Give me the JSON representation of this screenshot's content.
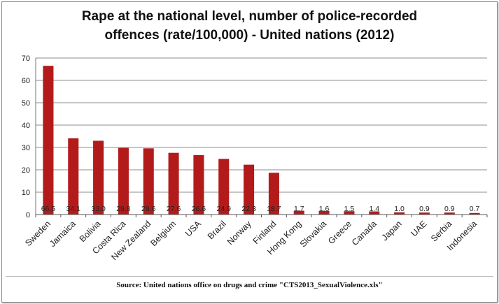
{
  "chart_data": {
    "type": "bar",
    "title_lines": [
      "Rape at the national level, number of police-recorded",
      "offences (rate/100,000) - United nations (2012)"
    ],
    "categories": [
      "Sweden",
      "Jamaica",
      "Bolivia",
      "Costa Rica",
      "New Zealand",
      "Belgium",
      "USA",
      "Brazil",
      "Norway",
      "Finland",
      "Hong Kong",
      "Slovakia",
      "Greece",
      "Canada",
      "Japan",
      "UAE",
      "Serbia",
      "Indonesia"
    ],
    "values": [
      66.5,
      34.1,
      33.0,
      29.8,
      29.6,
      27.6,
      26.6,
      24.9,
      22.3,
      18.7,
      1.7,
      1.6,
      1.5,
      1.4,
      1.0,
      0.9,
      0.9,
      0.7
    ],
    "value_labels": [
      "66.5",
      "34.1",
      "33.0",
      "29.8",
      "29.6",
      "27.6",
      "26.6",
      "24.9",
      "22.3",
      "18.7",
      "1.7",
      "1.6",
      "1.5",
      "1.4",
      "1.0",
      "0.9",
      "0.9",
      "0.7"
    ],
    "ylim": [
      0,
      70
    ],
    "yticks": [
      "0",
      "10",
      "20",
      "30",
      "40",
      "50",
      "60",
      "70"
    ],
    "grid": true,
    "legend": "none",
    "xlabel": "",
    "ylabel": "",
    "bar_color": "#b31b1b",
    "source": "Source: United nations office on drugs and crime \"CTS2013_SexualViolence.xls\""
  }
}
